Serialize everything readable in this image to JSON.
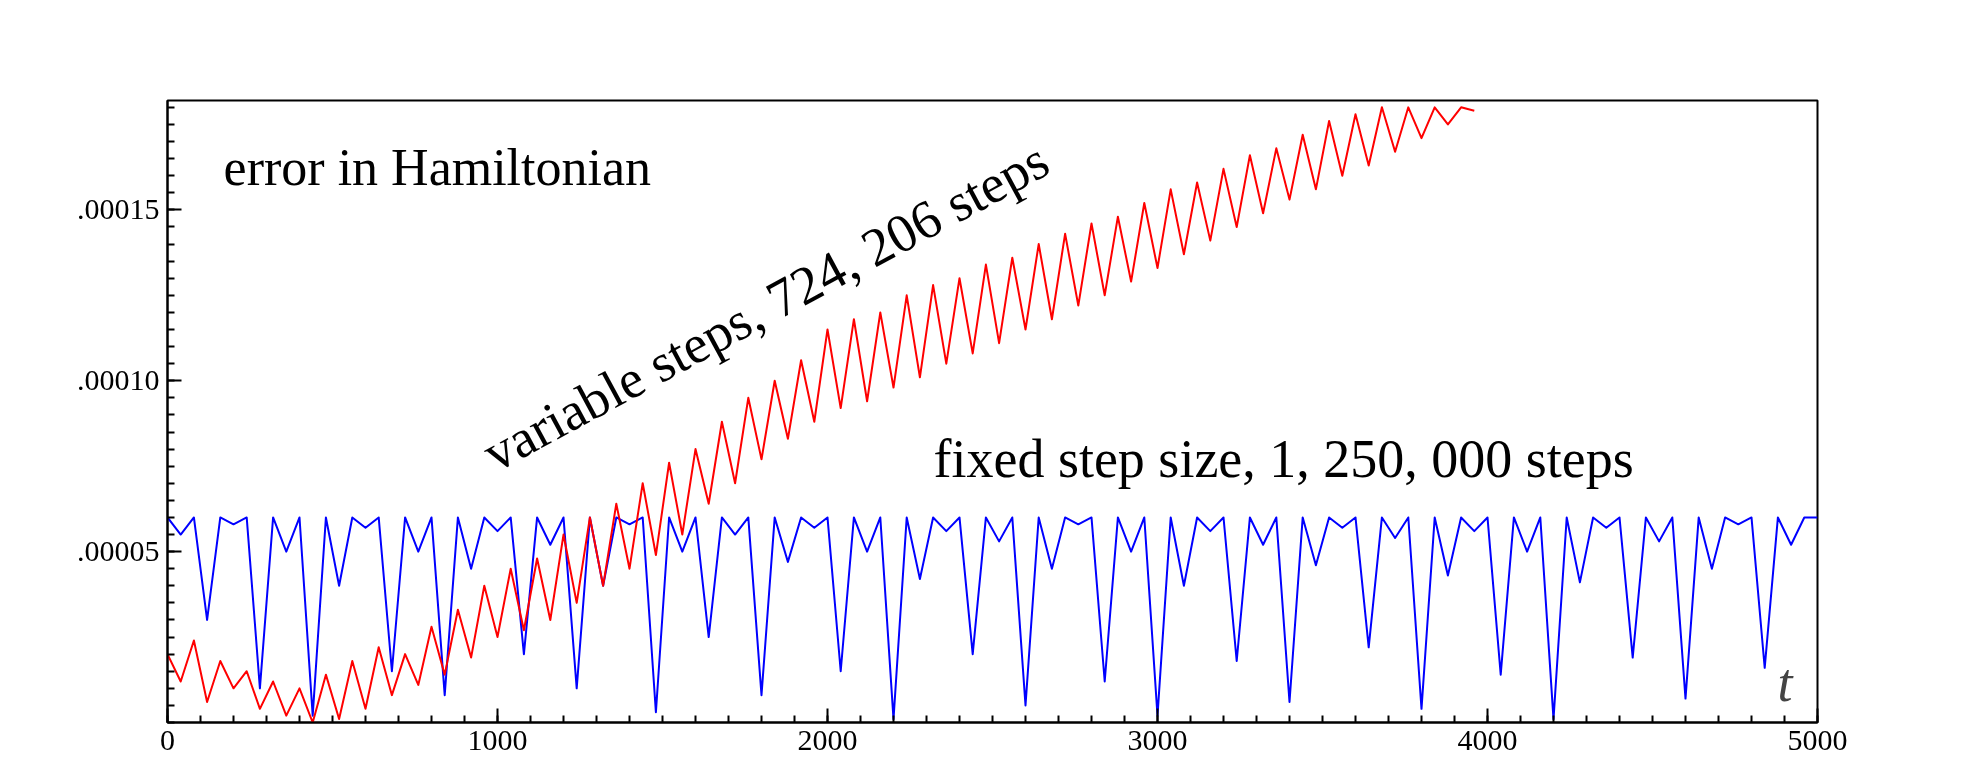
{
  "chart_data": {
    "type": "line",
    "xlabel": "t",
    "annotations": [
      "error in Hamiltonian"
    ],
    "xlim": [
      0,
      5000
    ],
    "ylim": [
      0,
      0.000182
    ],
    "xticks": [
      0,
      1000,
      2000,
      3000,
      4000,
      5000
    ],
    "yticks": [
      {
        "value": 5e-05,
        "label": ".00005"
      },
      {
        "value": 0.0001,
        "label": ".00010"
      },
      {
        "value": 0.00015,
        "label": ".00015"
      }
    ],
    "grid": false,
    "marker": "none",
    "line_style": "solid",
    "series": [
      {
        "name": "fixed step size, 1, 250, 000 steps",
        "color": "#0000ff",
        "x": [
          0,
          40,
          80,
          120,
          160,
          200,
          240,
          280,
          320,
          360,
          400,
          440,
          480,
          520,
          560,
          600,
          640,
          680,
          720,
          760,
          800,
          840,
          880,
          920,
          960,
          1000,
          1040,
          1080,
          1120,
          1160,
          1200,
          1240,
          1280,
          1320,
          1360,
          1400,
          1440,
          1480,
          1520,
          1560,
          1600,
          1640,
          1680,
          1720,
          1760,
          1800,
          1840,
          1880,
          1920,
          1960,
          2000,
          2040,
          2080,
          2120,
          2160,
          2200,
          2240,
          2280,
          2320,
          2360,
          2400,
          2440,
          2480,
          2520,
          2560,
          2600,
          2640,
          2680,
          2720,
          2760,
          2800,
          2840,
          2880,
          2920,
          2960,
          3000,
          3040,
          3080,
          3120,
          3160,
          3200,
          3240,
          3280,
          3320,
          3360,
          3400,
          3440,
          3480,
          3520,
          3560,
          3600,
          3640,
          3680,
          3720,
          3760,
          3800,
          3840,
          3880,
          3920,
          3960,
          4000,
          4040,
          4080,
          4120,
          4160,
          4200,
          4240,
          4280,
          4320,
          4360,
          4400,
          4440,
          4480,
          4520,
          4560,
          4600,
          4640,
          4680,
          4720,
          4760,
          4800,
          4840,
          4880,
          4920,
          4960,
          5000
        ],
        "values": [
          6e-05,
          5.5e-05,
          6e-05,
          3e-05,
          6e-05,
          5.8e-05,
          6e-05,
          1e-05,
          6e-05,
          5e-05,
          6e-05,
          2e-06,
          6e-05,
          4e-05,
          6e-05,
          5.7e-05,
          6e-05,
          1.5e-05,
          6e-05,
          5e-05,
          6e-05,
          8e-06,
          6e-05,
          4.5e-05,
          6e-05,
          5.6e-05,
          6e-05,
          2e-05,
          6e-05,
          5.2e-05,
          6e-05,
          1e-05,
          6e-05,
          4e-05,
          6e-05,
          5.8e-05,
          6e-05,
          3e-06,
          6e-05,
          5e-05,
          6e-05,
          2.5e-05,
          6e-05,
          5.5e-05,
          6e-05,
          8e-06,
          6e-05,
          4.7e-05,
          6e-05,
          5.7e-05,
          6e-05,
          1.5e-05,
          6e-05,
          5e-05,
          6e-05,
          1e-06,
          6e-05,
          4.2e-05,
          6e-05,
          5.6e-05,
          6e-05,
          2e-05,
          6e-05,
          5.3e-05,
          6e-05,
          5e-06,
          6e-05,
          4.5e-05,
          6e-05,
          5.8e-05,
          6e-05,
          1.2e-05,
          6e-05,
          5e-05,
          6e-05,
          2e-06,
          6e-05,
          4e-05,
          6e-05,
          5.6e-05,
          6e-05,
          1.8e-05,
          6e-05,
          5.2e-05,
          6e-05,
          6e-06,
          6e-05,
          4.6e-05,
          6e-05,
          5.7e-05,
          6e-05,
          2.2e-05,
          6e-05,
          5.4e-05,
          6e-05,
          4e-06,
          6e-05,
          4.3e-05,
          6e-05,
          5.6e-05,
          6e-05,
          1.4e-05,
          6e-05,
          5e-05,
          6e-05,
          1e-06,
          6e-05,
          4.1e-05,
          6e-05,
          5.7e-05,
          6e-05,
          1.9e-05,
          6e-05,
          5.3e-05,
          6e-05,
          7e-06,
          6e-05,
          4.5e-05,
          6e-05,
          5.8e-05,
          6e-05,
          1.6e-05,
          6e-05,
          5.2e-05,
          6e-05,
          6e-05
        ]
      },
      {
        "name": "variable steps, 724, 206 steps",
        "color": "#ff0000",
        "x": [
          0,
          40,
          80,
          120,
          160,
          200,
          240,
          280,
          320,
          360,
          400,
          440,
          480,
          520,
          560,
          600,
          640,
          680,
          720,
          760,
          800,
          840,
          880,
          920,
          960,
          1000,
          1040,
          1080,
          1120,
          1160,
          1200,
          1240,
          1280,
          1320,
          1360,
          1400,
          1440,
          1480,
          1520,
          1560,
          1600,
          1640,
          1680,
          1720,
          1760,
          1800,
          1840,
          1880,
          1920,
          1960,
          2000,
          2040,
          2080,
          2120,
          2160,
          2200,
          2240,
          2280,
          2320,
          2360,
          2400,
          2440,
          2480,
          2520,
          2560,
          2600,
          2640,
          2680,
          2720,
          2760,
          2800,
          2840,
          2880,
          2920,
          2960,
          3000,
          3040,
          3080,
          3120,
          3160,
          3200,
          3240,
          3280,
          3320,
          3360,
          3400,
          3440,
          3480,
          3520,
          3560,
          3600,
          3640,
          3680,
          3720,
          3760,
          3800,
          3840,
          3880,
          3920,
          3960
        ],
        "values": [
          2e-05,
          1.2e-05,
          2.4e-05,
          6e-06,
          1.8e-05,
          1e-05,
          1.5e-05,
          4e-06,
          1.2e-05,
          2e-06,
          1e-05,
          0.0,
          1.4e-05,
          1e-06,
          1.8e-05,
          4e-06,
          2.2e-05,
          8e-06,
          2e-05,
          1.1e-05,
          2.8e-05,
          1.4e-05,
          3.3e-05,
          1.9e-05,
          4e-05,
          2.5e-05,
          4.5e-05,
          2.7e-05,
          4.8e-05,
          3e-05,
          5.5e-05,
          3.5e-05,
          6e-05,
          4e-05,
          6.4e-05,
          4.5e-05,
          7e-05,
          4.9e-05,
          7.6e-05,
          5.5e-05,
          8e-05,
          6.4e-05,
          8.8e-05,
          7e-05,
          9.5e-05,
          7.7e-05,
          0.0001,
          8.3e-05,
          0.000106,
          8.8e-05,
          0.000115,
          9.2e-05,
          0.000118,
          9.4e-05,
          0.00012,
          9.8e-05,
          0.000125,
          0.000101,
          0.000128,
          0.000105,
          0.00013,
          0.000108,
          0.000134,
          0.000111,
          0.000136,
          0.000115,
          0.00014,
          0.000118,
          0.000143,
          0.000122,
          0.000146,
          0.000125,
          0.000148,
          0.000129,
          0.000152,
          0.000133,
          0.000156,
          0.000137,
          0.000158,
          0.000141,
          0.000162,
          0.000145,
          0.000166,
          0.000149,
          0.000168,
          0.000153,
          0.000172,
          0.000156,
          0.000176,
          0.00016,
          0.000178,
          0.000163,
          0.00018,
          0.000167,
          0.00018,
          0.000171,
          0.00018,
          0.000175,
          0.00018,
          0.000179
        ]
      }
    ]
  }
}
